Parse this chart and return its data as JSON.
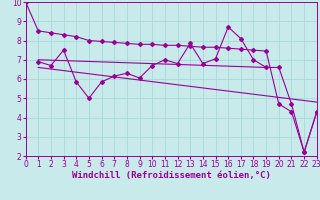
{
  "background_color": "#c8eaea",
  "grid_color": "#a8d8d8",
  "line_color": "#990099",
  "xlabel": "Windchill (Refroidissement éolien,°C)",
  "ylim": [
    2,
    10
  ],
  "xlim": [
    0,
    23
  ],
  "yticks": [
    2,
    3,
    4,
    5,
    6,
    7,
    8,
    9,
    10
  ],
  "xticks": [
    0,
    1,
    2,
    3,
    4,
    5,
    6,
    7,
    8,
    9,
    10,
    11,
    12,
    13,
    14,
    15,
    16,
    17,
    18,
    19,
    20,
    21,
    22,
    23
  ],
  "series_upper_x": [
    0,
    1,
    2,
    3,
    4,
    5,
    6,
    7,
    8,
    9,
    10,
    11,
    12,
    13,
    14,
    15,
    16,
    17,
    18,
    19,
    20,
    21,
    22,
    23
  ],
  "series_upper_y": [
    10.0,
    8.5,
    8.4,
    8.3,
    8.2,
    8.0,
    7.95,
    7.9,
    7.85,
    7.8,
    7.8,
    7.75,
    7.75,
    7.7,
    7.65,
    7.65,
    7.6,
    7.55,
    7.5,
    7.45,
    4.7,
    4.3,
    2.2,
    4.3
  ],
  "series_zigzag_x": [
    1,
    2,
    3,
    4,
    5,
    6,
    7,
    8,
    9,
    10,
    11,
    12,
    13,
    14,
    15,
    16,
    17,
    18,
    19,
    20,
    21,
    22,
    23
  ],
  "series_zigzag_y": [
    6.9,
    6.7,
    7.5,
    5.85,
    5.0,
    5.85,
    6.15,
    6.3,
    6.05,
    6.7,
    7.0,
    6.8,
    7.85,
    6.8,
    7.05,
    8.7,
    8.1,
    7.0,
    6.6,
    6.6,
    4.7,
    2.2,
    4.3
  ],
  "trend1_x": [
    1,
    19
  ],
  "trend1_y": [
    7.0,
    6.6
  ],
  "trend2_x": [
    1,
    23
  ],
  "trend2_y": [
    6.6,
    4.8
  ],
  "tick_fontsize": 5.5,
  "xlabel_fontsize": 6.5
}
